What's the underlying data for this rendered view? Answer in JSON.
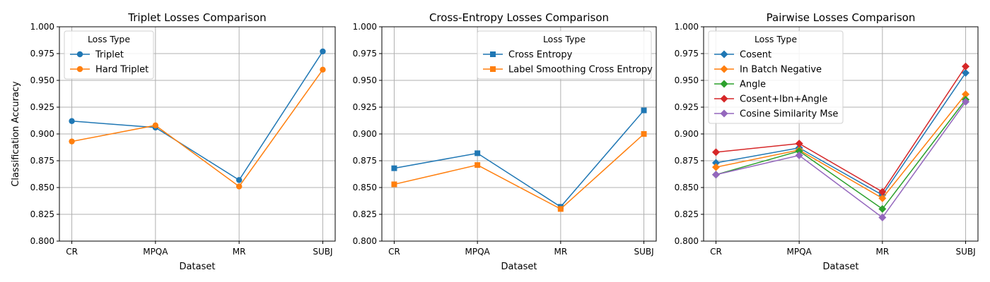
{
  "chart_data": [
    {
      "type": "line",
      "title": "Triplet Losses Comparison",
      "xlabel": "Dataset",
      "ylabel": "Classification Accuracy",
      "categories": [
        "CR",
        "MPQA",
        "MR",
        "SUBJ"
      ],
      "ylim": [
        0.8,
        1.0
      ],
      "yticks": [
        "0.800",
        "0.825",
        "0.850",
        "0.875",
        "0.900",
        "0.925",
        "0.950",
        "0.975",
        "1.000"
      ],
      "grid": true,
      "marker": "circle",
      "legend_title": "Loss Type",
      "legend_position": "top-left",
      "series": [
        {
          "name": "Triplet",
          "color": "#1f77b4",
          "values": [
            0.912,
            0.906,
            0.857,
            0.977
          ]
        },
        {
          "name": "Hard Triplet",
          "color": "#ff7f0e",
          "values": [
            0.893,
            0.908,
            0.851,
            0.96
          ]
        }
      ]
    },
    {
      "type": "line",
      "title": "Cross-Entropy Losses Comparison",
      "xlabel": "Dataset",
      "ylabel": "",
      "categories": [
        "CR",
        "MPQA",
        "MR",
        "SUBJ"
      ],
      "ylim": [
        0.8,
        1.0
      ],
      "yticks": [
        "0.800",
        "0.825",
        "0.850",
        "0.875",
        "0.900",
        "0.925",
        "0.950",
        "0.975",
        "1.000"
      ],
      "grid": true,
      "marker": "square",
      "legend_title": "Loss Type",
      "legend_position": "top-right",
      "series": [
        {
          "name": "Cross Entropy",
          "color": "#1f77b4",
          "values": [
            0.868,
            0.882,
            0.832,
            0.922
          ]
        },
        {
          "name": "Label Smoothing Cross Entropy",
          "color": "#ff7f0e",
          "values": [
            0.853,
            0.871,
            0.83,
            0.9
          ]
        }
      ]
    },
    {
      "type": "line",
      "title": "Pairwise Losses Comparison",
      "xlabel": "Dataset",
      "ylabel": "",
      "categories": [
        "CR",
        "MPQA",
        "MR",
        "SUBJ"
      ],
      "ylim": [
        0.8,
        1.0
      ],
      "yticks": [
        "0.800",
        "0.825",
        "0.850",
        "0.875",
        "0.900",
        "0.925",
        "0.950",
        "0.975",
        "1.000"
      ],
      "grid": true,
      "marker": "diamond",
      "legend_title": "Loss Type",
      "legend_position": "top-left",
      "series": [
        {
          "name": "Cosent",
          "color": "#1f77b4",
          "values": [
            0.873,
            0.887,
            0.843,
            0.957
          ]
        },
        {
          "name": "In Batch Negative",
          "color": "#ff7f0e",
          "values": [
            0.869,
            0.885,
            0.84,
            0.937
          ]
        },
        {
          "name": "Angle",
          "color": "#2ca02c",
          "values": [
            0.862,
            0.884,
            0.83,
            0.932
          ]
        },
        {
          "name": "Cosent+Ibn+Angle",
          "color": "#d62728",
          "values": [
            0.883,
            0.891,
            0.846,
            0.963
          ]
        },
        {
          "name": "Cosine Similarity Mse",
          "color": "#9467bd",
          "values": [
            0.862,
            0.88,
            0.822,
            0.93
          ]
        }
      ]
    }
  ]
}
